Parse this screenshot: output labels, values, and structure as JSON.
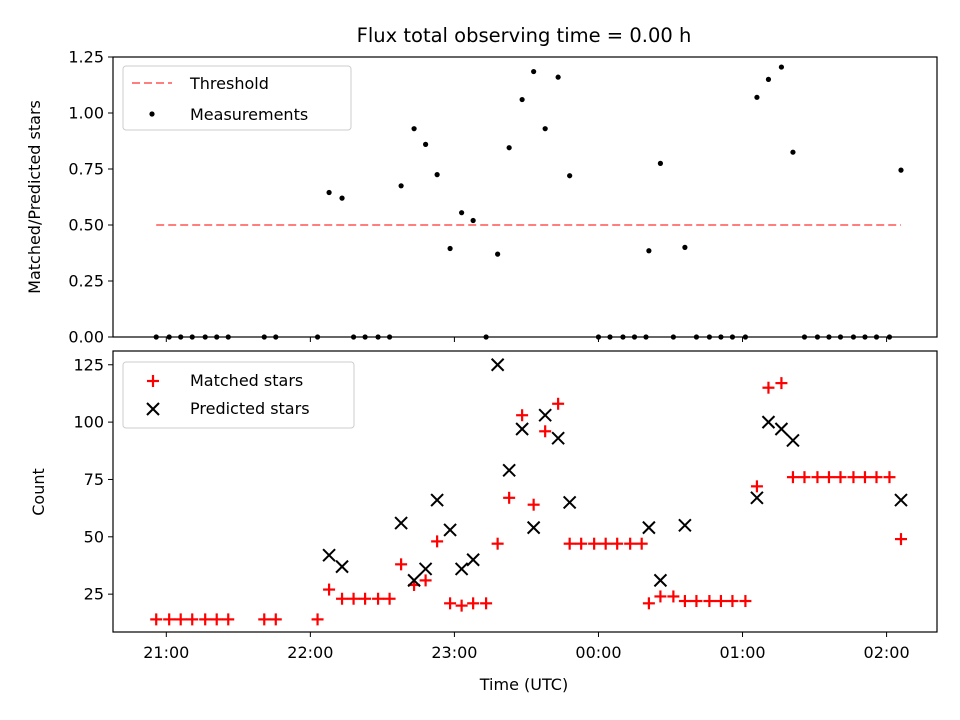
{
  "chart_data": {
    "title": "Flux total observing time = 0.00 h",
    "xlabel": "Time (UTC)",
    "xticks": [
      "21:00",
      "22:00",
      "23:00",
      "00:00",
      "01:00",
      "02:00"
    ],
    "xlim_hours": [
      20.63,
      26.35
    ],
    "panels": [
      {
        "type": "scatter",
        "ylabel": "Matched/Predicted stars",
        "ylim": [
          0,
          1.25
        ],
        "yticks": [
          "0.00",
          "0.25",
          "0.50",
          "0.75",
          "1.00",
          "1.25"
        ],
        "legend_position": "top-left",
        "threshold": {
          "name": "Threshold",
          "y": 0.5,
          "x_range": [
            20.93,
            26.1
          ],
          "color": "#ff7f7f"
        },
        "series": [
          {
            "name": "Measurements",
            "color": "#000000",
            "points": [
              [
                20.93,
                0
              ],
              [
                21.02,
                0
              ],
              [
                21.1,
                0
              ],
              [
                21.18,
                0
              ],
              [
                21.27,
                0
              ],
              [
                21.35,
                0
              ],
              [
                21.43,
                0
              ],
              [
                21.68,
                0
              ],
              [
                21.76,
                0
              ],
              [
                22.05,
                0
              ],
              [
                22.13,
                0.645
              ],
              [
                22.22,
                0.62
              ],
              [
                22.3,
                0
              ],
              [
                22.38,
                0
              ],
              [
                22.47,
                0
              ],
              [
                22.55,
                0
              ],
              [
                22.63,
                0.675
              ],
              [
                22.72,
                0.93
              ],
              [
                22.8,
                0.86
              ],
              [
                22.88,
                0.725
              ],
              [
                22.97,
                0.395
              ],
              [
                23.05,
                0.555
              ],
              [
                23.13,
                0.52
              ],
              [
                23.22,
                0
              ],
              [
                23.3,
                0.37
              ],
              [
                23.38,
                0.845
              ],
              [
                23.47,
                1.06
              ],
              [
                23.55,
                1.185
              ],
              [
                23.63,
                0.93
              ],
              [
                23.72,
                1.16
              ],
              [
                23.8,
                0.72
              ],
              [
                24.0,
                0
              ],
              [
                24.08,
                0
              ],
              [
                24.17,
                0
              ],
              [
                24.25,
                0
              ],
              [
                24.33,
                0
              ],
              [
                24.35,
                0.385
              ],
              [
                24.43,
                0.775
              ],
              [
                24.52,
                0
              ],
              [
                24.6,
                0.4
              ],
              [
                24.68,
                0
              ],
              [
                24.77,
                0
              ],
              [
                24.85,
                0
              ],
              [
                24.93,
                0
              ],
              [
                25.02,
                0
              ],
              [
                25.1,
                1.07
              ],
              [
                25.18,
                1.15
              ],
              [
                25.27,
                1.205
              ],
              [
                25.35,
                0.825
              ],
              [
                25.43,
                0
              ],
              [
                25.52,
                0
              ],
              [
                25.6,
                0
              ],
              [
                25.68,
                0
              ],
              [
                25.77,
                0
              ],
              [
                25.85,
                0
              ],
              [
                25.93,
                0
              ],
              [
                26.02,
                0
              ],
              [
                26.1,
                0.745
              ]
            ]
          }
        ]
      },
      {
        "type": "scatter",
        "ylabel": "Count",
        "ylim": [
          8.5,
          131
        ],
        "yticks": [
          "25",
          "50",
          "75",
          "100",
          "125"
        ],
        "legend_position": "top-left",
        "series": [
          {
            "name": "Matched stars",
            "color": "#ff0000",
            "marker": "plus",
            "points": [
              [
                20.93,
                14
              ],
              [
                21.02,
                14
              ],
              [
                21.1,
                14
              ],
              [
                21.18,
                14
              ],
              [
                21.27,
                14
              ],
              [
                21.35,
                14
              ],
              [
                21.43,
                14
              ],
              [
                21.68,
                14
              ],
              [
                21.76,
                14
              ],
              [
                22.05,
                14
              ],
              [
                22.13,
                27
              ],
              [
                22.22,
                23
              ],
              [
                22.3,
                23
              ],
              [
                22.38,
                23
              ],
              [
                22.47,
                23
              ],
              [
                22.55,
                23
              ],
              [
                22.63,
                38
              ],
              [
                22.72,
                29
              ],
              [
                22.8,
                31
              ],
              [
                22.88,
                48
              ],
              [
                22.97,
                21
              ],
              [
                23.05,
                20
              ],
              [
                23.13,
                21
              ],
              [
                23.22,
                21
              ],
              [
                23.3,
                47
              ],
              [
                23.38,
                67
              ],
              [
                23.47,
                103
              ],
              [
                23.55,
                64
              ],
              [
                23.63,
                96
              ],
              [
                23.72,
                108
              ],
              [
                23.8,
                47
              ],
              [
                23.88,
                47
              ],
              [
                23.97,
                47
              ],
              [
                24.05,
                47
              ],
              [
                24.13,
                47
              ],
              [
                24.22,
                47
              ],
              [
                24.3,
                47
              ],
              [
                24.35,
                21
              ],
              [
                24.43,
                24
              ],
              [
                24.52,
                24
              ],
              [
                24.6,
                22
              ],
              [
                24.68,
                22
              ],
              [
                24.77,
                22
              ],
              [
                24.85,
                22
              ],
              [
                24.93,
                22
              ],
              [
                25.02,
                22
              ],
              [
                25.1,
                72
              ],
              [
                25.18,
                115
              ],
              [
                25.27,
                117
              ],
              [
                25.35,
                76
              ],
              [
                25.43,
                76
              ],
              [
                25.52,
                76
              ],
              [
                25.6,
                76
              ],
              [
                25.68,
                76
              ],
              [
                25.77,
                76
              ],
              [
                25.85,
                76
              ],
              [
                25.93,
                76
              ],
              [
                26.02,
                76
              ],
              [
                26.1,
                49
              ]
            ]
          },
          {
            "name": "Predicted stars",
            "color": "#000000",
            "marker": "x",
            "points": [
              [
                22.13,
                42
              ],
              [
                22.22,
                37
              ],
              [
                22.63,
                56
              ],
              [
                22.72,
                31
              ],
              [
                22.8,
                36
              ],
              [
                22.88,
                66
              ],
              [
                22.97,
                53
              ],
              [
                23.05,
                36
              ],
              [
                23.13,
                40
              ],
              [
                23.3,
                125
              ],
              [
                23.38,
                79
              ],
              [
                23.47,
                97
              ],
              [
                23.55,
                54
              ],
              [
                23.63,
                103
              ],
              [
                23.72,
                93
              ],
              [
                23.8,
                65
              ],
              [
                24.35,
                54
              ],
              [
                24.43,
                31
              ],
              [
                24.6,
                55
              ],
              [
                25.1,
                67
              ],
              [
                25.18,
                100
              ],
              [
                25.27,
                97
              ],
              [
                25.35,
                92
              ],
              [
                26.1,
                66
              ]
            ]
          }
        ]
      }
    ]
  }
}
